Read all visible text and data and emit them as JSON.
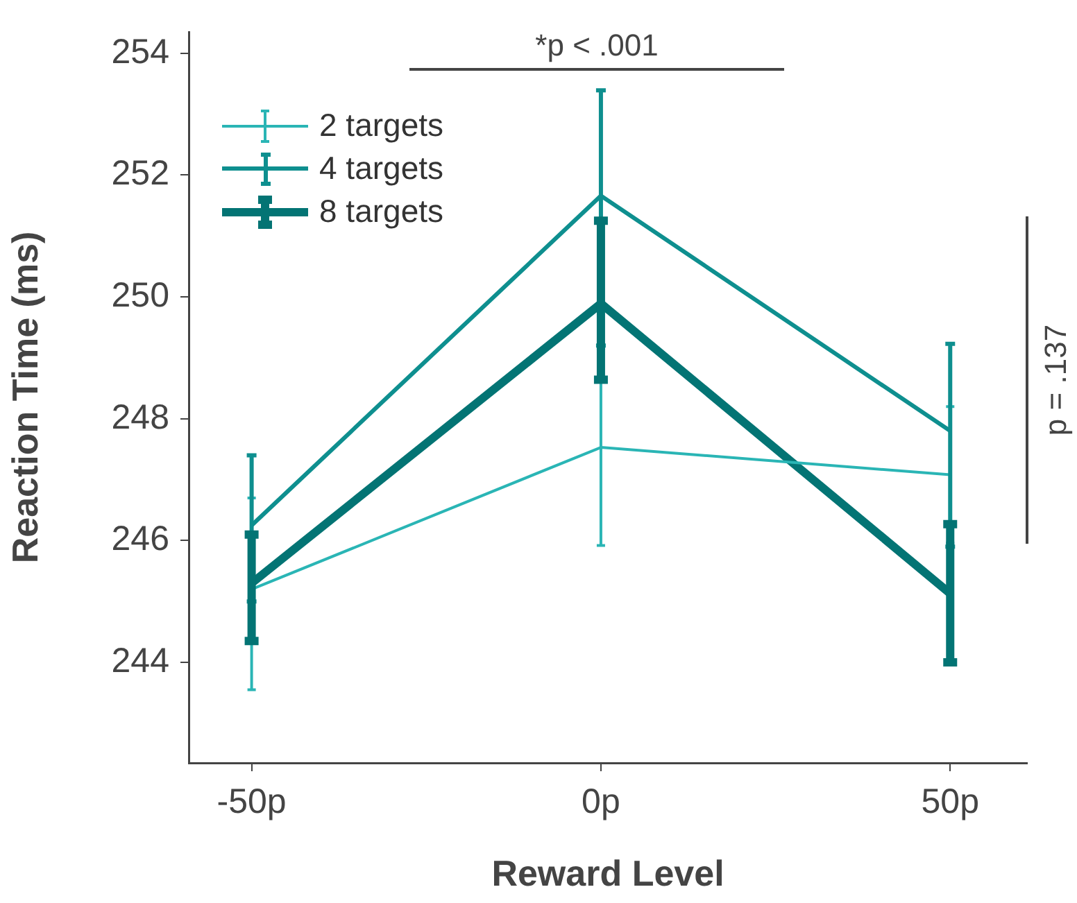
{
  "chart_data": {
    "type": "line",
    "xlabel": "Reward Level",
    "ylabel": "Reaction Time (ms)",
    "x": [
      -50,
      0,
      50
    ],
    "xlim": [
      -59,
      61
    ],
    "xticks": [
      {
        "value": -50,
        "label": "-50p"
      },
      {
        "value": 0,
        "label": "0p"
      },
      {
        "value": 50,
        "label": "50p"
      }
    ],
    "ylim": [
      242.35,
      254.35
    ],
    "yticks": [
      244,
      246,
      248,
      250,
      252,
      254
    ],
    "series": [
      {
        "name": "2 targets",
        "color": "#2ab5b5",
        "values": [
          245.2,
          247.53,
          247.08
        ],
        "errors": [
          [
            243.55,
            246.7
          ],
          [
            245.92,
            249.15
          ],
          [
            245.96,
            248.2
          ]
        ]
      },
      {
        "name": "4 targets",
        "color": "#0e8f8f",
        "values": [
          246.25,
          251.66,
          247.8
        ],
        "errors": [
          [
            245.0,
            247.4
          ],
          [
            249.2,
            253.39
          ],
          [
            245.9,
            249.23
          ]
        ]
      },
      {
        "name": "8 targets",
        "color": "#037474",
        "values": [
          245.3,
          249.89,
          245.13
        ],
        "errors": [
          [
            244.35,
            246.1
          ],
          [
            248.64,
            251.25
          ],
          [
            244.0,
            246.27
          ]
        ]
      }
    ],
    "annotations": [
      "*p < .001",
      "p = .137"
    ],
    "legend": "top left",
    "grid": false,
    "marker": "none",
    "line_style": "solid"
  }
}
